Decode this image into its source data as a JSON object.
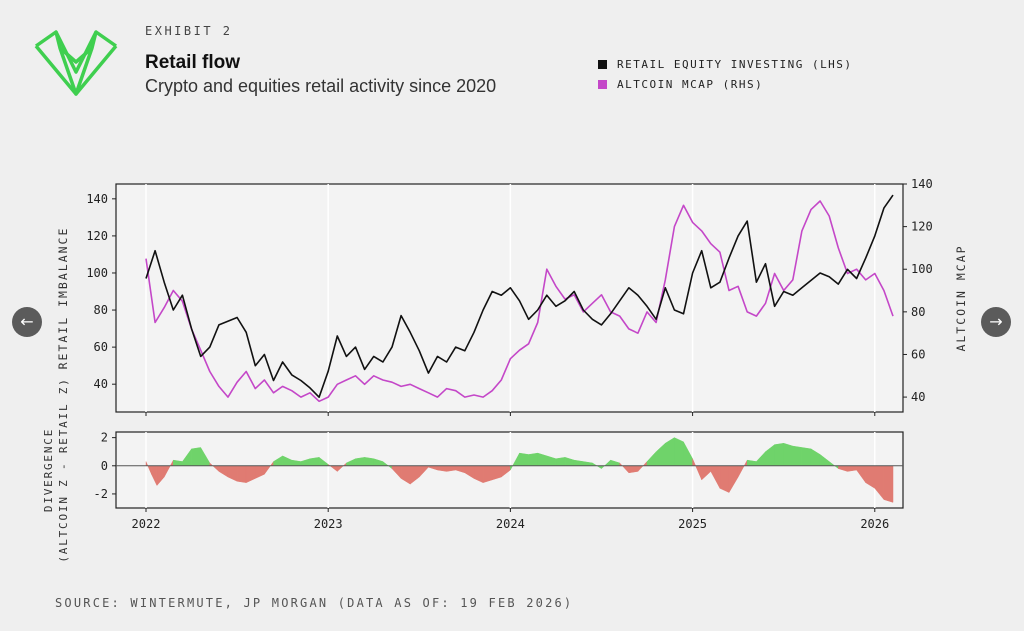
{
  "header": {
    "exhibit": "EXHIBIT 2",
    "title": "Retail flow",
    "subtitle": "Crypto and equities retail activity since 2020"
  },
  "legend": [
    {
      "label": "RETAIL EQUITY INVESTING (LHS)",
      "color": "#111111"
    },
    {
      "label": "ALTCOIN MCAP (RHS)",
      "color": "#c447c8"
    }
  ],
  "footer": {
    "source": "SOURCE: WINTERMUTE, JP MORGAN (DATA AS OF: 19 FEB 2026)"
  },
  "nav": {
    "prev_icon": "arrow-left-icon",
    "next_icon": "arrow-right-icon",
    "prev_glyph": "←",
    "next_glyph": "→"
  },
  "colors": {
    "brand": "#3fcf4f",
    "positive": "#6fd36a",
    "negative": "#e07b72"
  },
  "chart_data": {
    "type": "line",
    "x_ticks": [
      "2022",
      "2023",
      "2024",
      "2025",
      "2026"
    ],
    "xlim": [
      2022.0,
      2026.1
    ],
    "top_panel": {
      "ylabel_left": "RETAIL IMBALANCE",
      "ylabel_right": "ALTCOIN MCAP",
      "ylim_left": [
        25,
        148
      ],
      "ylim_right": [
        33,
        140
      ],
      "yticks_left": [
        40,
        60,
        80,
        100,
        120,
        140
      ],
      "yticks_right": [
        40,
        60,
        80,
        100,
        120,
        140
      ],
      "series": [
        {
          "name": "RETAIL EQUITY INVESTING (LHS)",
          "axis": "left",
          "color": "#111111",
          "x": [
            2022.0,
            2022.05,
            2022.1,
            2022.15,
            2022.2,
            2022.25,
            2022.3,
            2022.35,
            2022.4,
            2022.5,
            2022.55,
            2022.6,
            2022.65,
            2022.7,
            2022.75,
            2022.8,
            2022.85,
            2022.9,
            2022.95,
            2023.0,
            2023.05,
            2023.1,
            2023.15,
            2023.2,
            2023.25,
            2023.3,
            2023.35,
            2023.4,
            2023.45,
            2023.5,
            2023.55,
            2023.6,
            2023.65,
            2023.7,
            2023.75,
            2023.8,
            2023.85,
            2023.9,
            2023.95,
            2024.0,
            2024.05,
            2024.1,
            2024.15,
            2024.2,
            2024.25,
            2024.3,
            2024.35,
            2024.4,
            2024.45,
            2024.5,
            2024.55,
            2024.6,
            2024.65,
            2024.7,
            2024.75,
            2024.8,
            2024.85,
            2024.9,
            2024.95,
            2025.0,
            2025.05,
            2025.1,
            2025.15,
            2025.2,
            2025.25,
            2025.3,
            2025.35,
            2025.4,
            2025.45,
            2025.5,
            2025.55,
            2025.6,
            2025.65,
            2025.7,
            2025.75,
            2025.8,
            2025.85,
            2025.9,
            2025.95,
            2026.0,
            2026.05,
            2026.1
          ],
          "values": [
            97,
            112,
            95,
            80,
            88,
            70,
            55,
            60,
            72,
            76,
            68,
            50,
            56,
            42,
            52,
            45,
            42,
            38,
            33,
            47,
            66,
            55,
            60,
            48,
            55,
            52,
            60,
            77,
            68,
            58,
            46,
            55,
            52,
            60,
            58,
            68,
            80,
            90,
            88,
            92,
            85,
            75,
            80,
            88,
            82,
            85,
            90,
            80,
            75,
            72,
            78,
            85,
            92,
            88,
            82,
            75,
            92,
            80,
            78,
            100,
            112,
            92,
            95,
            108,
            120,
            128,
            95,
            105,
            82,
            90,
            88,
            92,
            96,
            100,
            98,
            94,
            102,
            97,
            108,
            120,
            135,
            142
          ]
        },
        {
          "name": "ALTCOIN MCAP (RHS)",
          "axis": "right",
          "color": "#c447c8",
          "x": [
            2022.0,
            2022.05,
            2022.1,
            2022.15,
            2022.2,
            2022.25,
            2022.3,
            2022.35,
            2022.4,
            2022.45,
            2022.5,
            2022.55,
            2022.6,
            2022.65,
            2022.7,
            2022.75,
            2022.8,
            2022.85,
            2022.9,
            2022.95,
            2023.0,
            2023.05,
            2023.1,
            2023.15,
            2023.2,
            2023.25,
            2023.3,
            2023.35,
            2023.4,
            2023.45,
            2023.5,
            2023.55,
            2023.6,
            2023.65,
            2023.7,
            2023.75,
            2023.8,
            2023.85,
            2023.9,
            2023.95,
            2024.0,
            2024.05,
            2024.1,
            2024.15,
            2024.2,
            2024.25,
            2024.3,
            2024.35,
            2024.4,
            2024.45,
            2024.5,
            2024.55,
            2024.6,
            2024.65,
            2024.7,
            2024.75,
            2024.8,
            2024.85,
            2024.9,
            2024.95,
            2025.0,
            2025.05,
            2025.1,
            2025.15,
            2025.2,
            2025.25,
            2025.3,
            2025.35,
            2025.4,
            2025.45,
            2025.5,
            2025.55,
            2025.6,
            2025.65,
            2025.7,
            2025.75,
            2025.8,
            2025.85,
            2025.9,
            2025.95,
            2026.0,
            2026.05,
            2026.1
          ],
          "values": [
            105,
            75,
            82,
            90,
            85,
            72,
            62,
            52,
            45,
            40,
            47,
            52,
            44,
            48,
            42,
            45,
            43,
            40,
            42,
            38,
            40,
            46,
            48,
            50,
            46,
            50,
            48,
            47,
            45,
            46,
            44,
            42,
            40,
            44,
            43,
            40,
            41,
            40,
            43,
            48,
            58,
            62,
            65,
            75,
            100,
            92,
            86,
            88,
            80,
            84,
            88,
            80,
            78,
            72,
            70,
            80,
            75,
            95,
            120,
            130,
            122,
            118,
            112,
            108,
            90,
            92,
            80,
            78,
            84,
            98,
            90,
            95,
            118,
            128,
            132,
            125,
            110,
            98,
            100,
            95,
            98,
            90,
            78
          ]
        }
      ]
    },
    "bottom_panel": {
      "ylabel_line1": "DIVERGENCE",
      "ylabel_line2": "(ALTCOIN Z - RETAIL Z)",
      "ylim": [
        -3,
        2.4
      ],
      "yticks": [
        -2,
        0,
        2
      ],
      "series": {
        "name": "Divergence",
        "x": [
          2022.0,
          2022.03,
          2022.06,
          2022.1,
          2022.15,
          2022.2,
          2022.25,
          2022.3,
          2022.35,
          2022.4,
          2022.45,
          2022.5,
          2022.55,
          2022.6,
          2022.65,
          2022.7,
          2022.75,
          2022.8,
          2022.85,
          2022.9,
          2022.95,
          2023.0,
          2023.05,
          2023.1,
          2023.15,
          2023.2,
          2023.25,
          2023.3,
          2023.35,
          2023.4,
          2023.45,
          2023.5,
          2023.55,
          2023.6,
          2023.65,
          2023.7,
          2023.75,
          2023.8,
          2023.85,
          2023.9,
          2023.95,
          2024.0,
          2024.05,
          2024.1,
          2024.15,
          2024.2,
          2024.25,
          2024.3,
          2024.35,
          2024.4,
          2024.45,
          2024.5,
          2024.55,
          2024.6,
          2024.65,
          2024.7,
          2024.75,
          2024.8,
          2024.85,
          2024.9,
          2024.95,
          2025.0,
          2025.05,
          2025.1,
          2025.15,
          2025.2,
          2025.25,
          2025.3,
          2025.35,
          2025.4,
          2025.45,
          2025.5,
          2025.55,
          2025.6,
          2025.65,
          2025.7,
          2025.75,
          2025.8,
          2025.85,
          2025.9,
          2025.95,
          2026.0,
          2026.05,
          2026.1
        ],
        "values": [
          0.3,
          -0.6,
          -1.4,
          -0.8,
          0.4,
          0.3,
          1.2,
          1.3,
          0.2,
          -0.4,
          -0.8,
          -1.1,
          -1.2,
          -0.9,
          -0.6,
          0.3,
          0.7,
          0.4,
          0.3,
          0.5,
          0.6,
          0.1,
          -0.4,
          0.2,
          0.5,
          0.6,
          0.5,
          0.3,
          -0.2,
          -0.9,
          -1.3,
          -0.8,
          -0.1,
          -0.3,
          -0.4,
          -0.3,
          -0.5,
          -0.9,
          -1.2,
          -1.0,
          -0.8,
          -0.3,
          0.9,
          0.8,
          0.9,
          0.7,
          0.5,
          0.6,
          0.4,
          0.3,
          0.2,
          -0.2,
          0.4,
          0.2,
          -0.5,
          -0.4,
          0.3,
          1.0,
          1.6,
          2.0,
          1.7,
          0.5,
          -1.0,
          -0.4,
          -1.6,
          -1.9,
          -0.8,
          0.4,
          0.3,
          1.0,
          1.5,
          1.6,
          1.4,
          1.3,
          1.2,
          0.8,
          0.3,
          -0.2,
          -0.4,
          -0.3,
          -1.2,
          -1.6,
          -2.4,
          -2.6
        ]
      }
    }
  }
}
